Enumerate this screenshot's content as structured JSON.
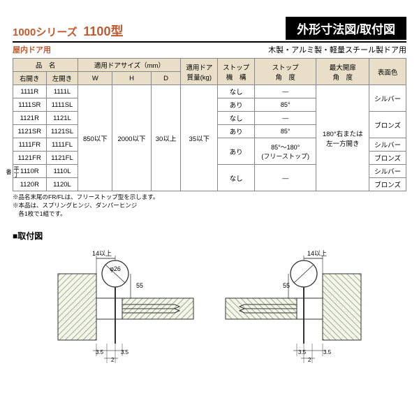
{
  "header": {
    "series": "1000シリーズ",
    "model": "1100型",
    "title_right": "外形寸法図/取付図",
    "sub_left": "屋内ドア用",
    "sub_right": "木製・アルミ製・軽量スチール製ドア用"
  },
  "table": {
    "head": {
      "name": "品　名",
      "right": "右開き",
      "left": "左開き",
      "doorsize": "適用ドアサイズ（mm）",
      "w": "W",
      "h": "H",
      "d": "D",
      "mass": "適用ドア\n質量(kg)",
      "stop_mech": "ストップ\n機　構",
      "stop_angle": "ストップ\n角　度",
      "max_open": "最大開扉\n角　度",
      "surface": "表面色"
    },
    "rows": [
      {
        "r": "1111R",
        "l": "1111L",
        "stop": "なし",
        "angle": "—",
        "surf": "シルバー",
        "surf_span": 2
      },
      {
        "r": "1111SR",
        "l": "1111SL",
        "stop": "あり",
        "angle": "85°"
      },
      {
        "r": "1121R",
        "l": "1121L",
        "stop": "なし",
        "angle": "—",
        "surf": "ブロンズ",
        "surf_span": 2
      },
      {
        "r": "1121SR",
        "l": "1121SL",
        "stop": "あり",
        "angle": "85°"
      },
      {
        "r": "1111FR",
        "l": "1111FL",
        "stop": "あり",
        "stop_span": 2,
        "angle": "85°〜180°\n(フリーストップ)",
        "angle_span": 2,
        "surf": "シルバー"
      },
      {
        "r": "1121FR",
        "l": "1121FL",
        "surf": "ブロンズ"
      },
      {
        "r": "1110R",
        "l": "1110L",
        "stop": "なし",
        "stop_span": 2,
        "angle": "—",
        "angle_span": 2,
        "surf": "シルバー",
        "prefix": "平丁番"
      },
      {
        "r": "1120R",
        "l": "1120L",
        "surf": "ブロンズ"
      }
    ],
    "shared": {
      "w": "850以下",
      "h": "2000以下",
      "d": "30以上",
      "mass": "35以下",
      "max_open": "180°右または\n左一方開き"
    }
  },
  "notes": {
    "n1": "※品名末尾のFR/FLは、フリーストップ型を示します。",
    "n2": "※本品は、スプリングヒンジ、ダンパーヒンジ",
    "n3": "　各1枚で1組です。"
  },
  "diagram": {
    "title": "■取付図",
    "dim14": "14以上",
    "dim55": "55",
    "dim26": "φ26",
    "dim35a": "3.5",
    "dim35b": "3.5",
    "dim2": "2"
  },
  "colors": {
    "frame": "#333",
    "hatch": "#7a9b5a",
    "fill_light": "#f5f5ee"
  }
}
